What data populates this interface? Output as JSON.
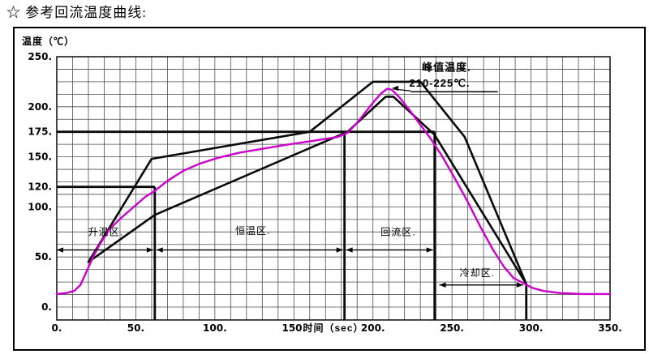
{
  "page": {
    "title": "☆ 参考回流温度曲线:"
  },
  "chart_data": {
    "type": "line",
    "title": "参考回流温度曲线",
    "xlabel": "时间（sec）",
    "ylabel": "温度（℃）",
    "xlim": [
      0,
      350
    ],
    "ylim": [
      0,
      250
    ],
    "grid": {
      "on": true,
      "x_step_sec": 10,
      "y_step_deg": 12.5
    },
    "x_ticks": [
      {
        "v": 0,
        "label": "0."
      },
      {
        "v": 50,
        "label": "50."
      },
      {
        "v": 100,
        "label": "100."
      },
      {
        "v": 150,
        "label": "150."
      },
      {
        "v": 200,
        "label": "200."
      },
      {
        "v": 250,
        "label": "250."
      },
      {
        "v": 300,
        "label": "300."
      },
      {
        "v": 350,
        "label": "350."
      }
    ],
    "y_ticks": [
      {
        "v": 250,
        "label": "250."
      },
      {
        "v": 200,
        "label": "200."
      },
      {
        "v": 175,
        "label": "175."
      },
      {
        "v": 150,
        "label": "150."
      },
      {
        "v": 120,
        "label": "120."
      },
      {
        "v": 100,
        "label": "100."
      },
      {
        "v": 50,
        "label": "50."
      },
      {
        "v": 0,
        "label": "0."
      }
    ],
    "series": [
      {
        "name": "upper-limit",
        "color": "#0a0a0a",
        "width": 2.6,
        "points": [
          [
            20,
            45
          ],
          [
            60,
            148
          ],
          [
            160,
            175
          ],
          [
            200,
            225
          ],
          [
            230,
            225
          ],
          [
            258,
            170
          ],
          [
            297,
            23
          ]
        ]
      },
      {
        "name": "lower-limit",
        "color": "#0a0a0a",
        "width": 2.6,
        "points": [
          [
            20,
            45
          ],
          [
            62,
            92
          ],
          [
            184,
            175
          ],
          [
            208,
            210
          ],
          [
            213,
            210
          ],
          [
            239,
            172
          ],
          [
            297,
            23
          ]
        ]
      },
      {
        "name": "measured-profile",
        "color": "#cc00cc",
        "width": 2.4,
        "points": [
          [
            0,
            13
          ],
          [
            6,
            14
          ],
          [
            11,
            16
          ],
          [
            15,
            22
          ],
          [
            19,
            36
          ],
          [
            23,
            50
          ],
          [
            27,
            62
          ],
          [
            33,
            77
          ],
          [
            40,
            88
          ],
          [
            48,
            99
          ],
          [
            56,
            110
          ],
          [
            62,
            116
          ],
          [
            70,
            126
          ],
          [
            80,
            136
          ],
          [
            90,
            143
          ],
          [
            102,
            149
          ],
          [
            115,
            154
          ],
          [
            130,
            158
          ],
          [
            145,
            162
          ],
          [
            158,
            165
          ],
          [
            170,
            168
          ],
          [
            178,
            170
          ],
          [
            184,
            174
          ],
          [
            190,
            184
          ],
          [
            196,
            196
          ],
          [
            201,
            206
          ],
          [
            205,
            213
          ],
          [
            209,
            218
          ],
          [
            212,
            217
          ],
          [
            217,
            209
          ],
          [
            223,
            197
          ],
          [
            230,
            182
          ],
          [
            237,
            167
          ],
          [
            244,
            150
          ],
          [
            252,
            128
          ],
          [
            260,
            105
          ],
          [
            268,
            80
          ],
          [
            276,
            57
          ],
          [
            283,
            40
          ],
          [
            289,
            29
          ],
          [
            295,
            24
          ],
          [
            301,
            19
          ],
          [
            308,
            16
          ],
          [
            318,
            14
          ],
          [
            332,
            13
          ],
          [
            350,
            13
          ]
        ]
      }
    ],
    "reference_lines": [
      {
        "name": "limit-175c",
        "orientation": "h",
        "value": 175,
        "from": 0,
        "to": 239
      },
      {
        "name": "limit-120c",
        "orientation": "h",
        "value": 120,
        "from": 0,
        "to": 62
      },
      {
        "name": "boundary-60s",
        "orientation": "v",
        "value": 62,
        "from_temp": 120,
        "to_temp": -13
      },
      {
        "name": "boundary-180s",
        "orientation": "v",
        "value": 182,
        "from_temp": 175,
        "to_temp": -13
      },
      {
        "name": "boundary-240s",
        "orientation": "v",
        "value": 239,
        "from_temp": 175,
        "to_temp": -13
      },
      {
        "name": "boundary-297s",
        "orientation": "v",
        "value": 297,
        "from_temp": 23,
        "to_temp": -13
      }
    ],
    "zones": [
      {
        "label": "升温区.",
        "arrow_from": 0,
        "arrow_to": 61,
        "arrow_temp": 57,
        "label_time": 31,
        "label_temp": 75
      },
      {
        "label": "恒温区.",
        "arrow_from": 63,
        "arrow_to": 181,
        "arrow_temp": 57,
        "label_time": 124,
        "label_temp": 76
      },
      {
        "label": "回流区.",
        "arrow_from": 183,
        "arrow_to": 238,
        "arrow_temp": 57,
        "label_time": 216,
        "label_temp": 75
      },
      {
        "label": "冷却区.",
        "arrow_from": 242,
        "arrow_to": 295,
        "arrow_temp": 22,
        "label_time": 266,
        "label_temp": 34
      }
    ],
    "peak_annotation": {
      "line1": "峰值温度.",
      "line2": "210-225℃.",
      "label_time": 231,
      "label2_time": 223,
      "line1_temp": 236,
      "line2_temp": 220,
      "underline_temp": 215,
      "underline_from": 224,
      "underline_to": 279,
      "tip_time": 212,
      "tip_temp": 218.5
    },
    "legend": {
      "visible": false
    }
  }
}
